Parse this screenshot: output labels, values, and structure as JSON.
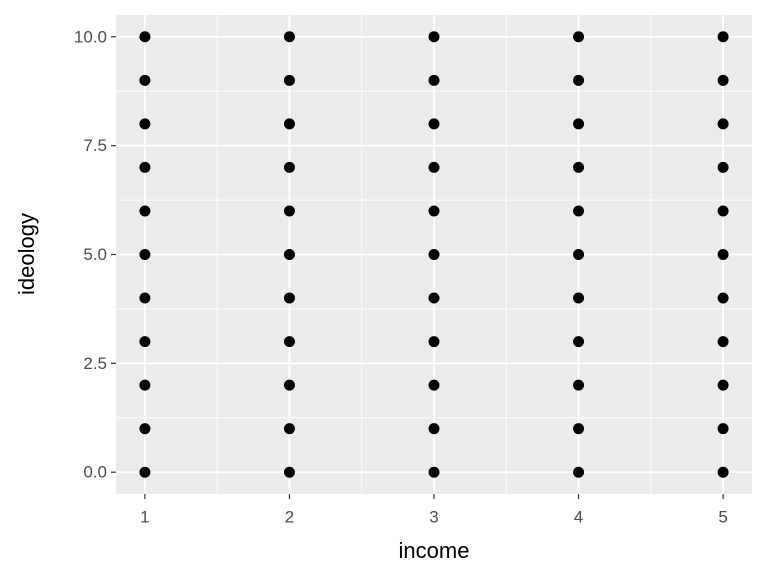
{
  "chart_data": {
    "type": "scatter",
    "x_label": "income",
    "y_label": "ideology",
    "x": [
      1,
      1,
      1,
      1,
      1,
      1,
      1,
      1,
      1,
      1,
      1,
      2,
      2,
      2,
      2,
      2,
      2,
      2,
      2,
      2,
      2,
      2,
      3,
      3,
      3,
      3,
      3,
      3,
      3,
      3,
      3,
      3,
      3,
      4,
      4,
      4,
      4,
      4,
      4,
      4,
      4,
      4,
      4,
      4,
      5,
      5,
      5,
      5,
      5,
      5,
      5,
      5,
      5,
      5,
      5
    ],
    "y": [
      0,
      1,
      2,
      3,
      4,
      5,
      6,
      7,
      8,
      9,
      10,
      0,
      1,
      2,
      3,
      4,
      5,
      6,
      7,
      8,
      9,
      10,
      0,
      1,
      2,
      3,
      4,
      5,
      6,
      7,
      8,
      9,
      10,
      0,
      1,
      2,
      3,
      4,
      5,
      6,
      7,
      8,
      9,
      10,
      0,
      1,
      2,
      3,
      4,
      5,
      6,
      7,
      8,
      9,
      10
    ],
    "color": "#000000",
    "xlim": [
      0.8,
      5.2
    ],
    "xticks": [
      1,
      2,
      3,
      4,
      5
    ],
    "ylim": [
      -0.5,
      10.5
    ],
    "yticks": [
      {
        "value": 0,
        "label": "0.0"
      },
      2.5,
      {
        "value": 5,
        "label": "5.0"
      },
      7.5,
      {
        "value": 10,
        "label": "10.0"
      }
    ],
    "grid": true
  }
}
